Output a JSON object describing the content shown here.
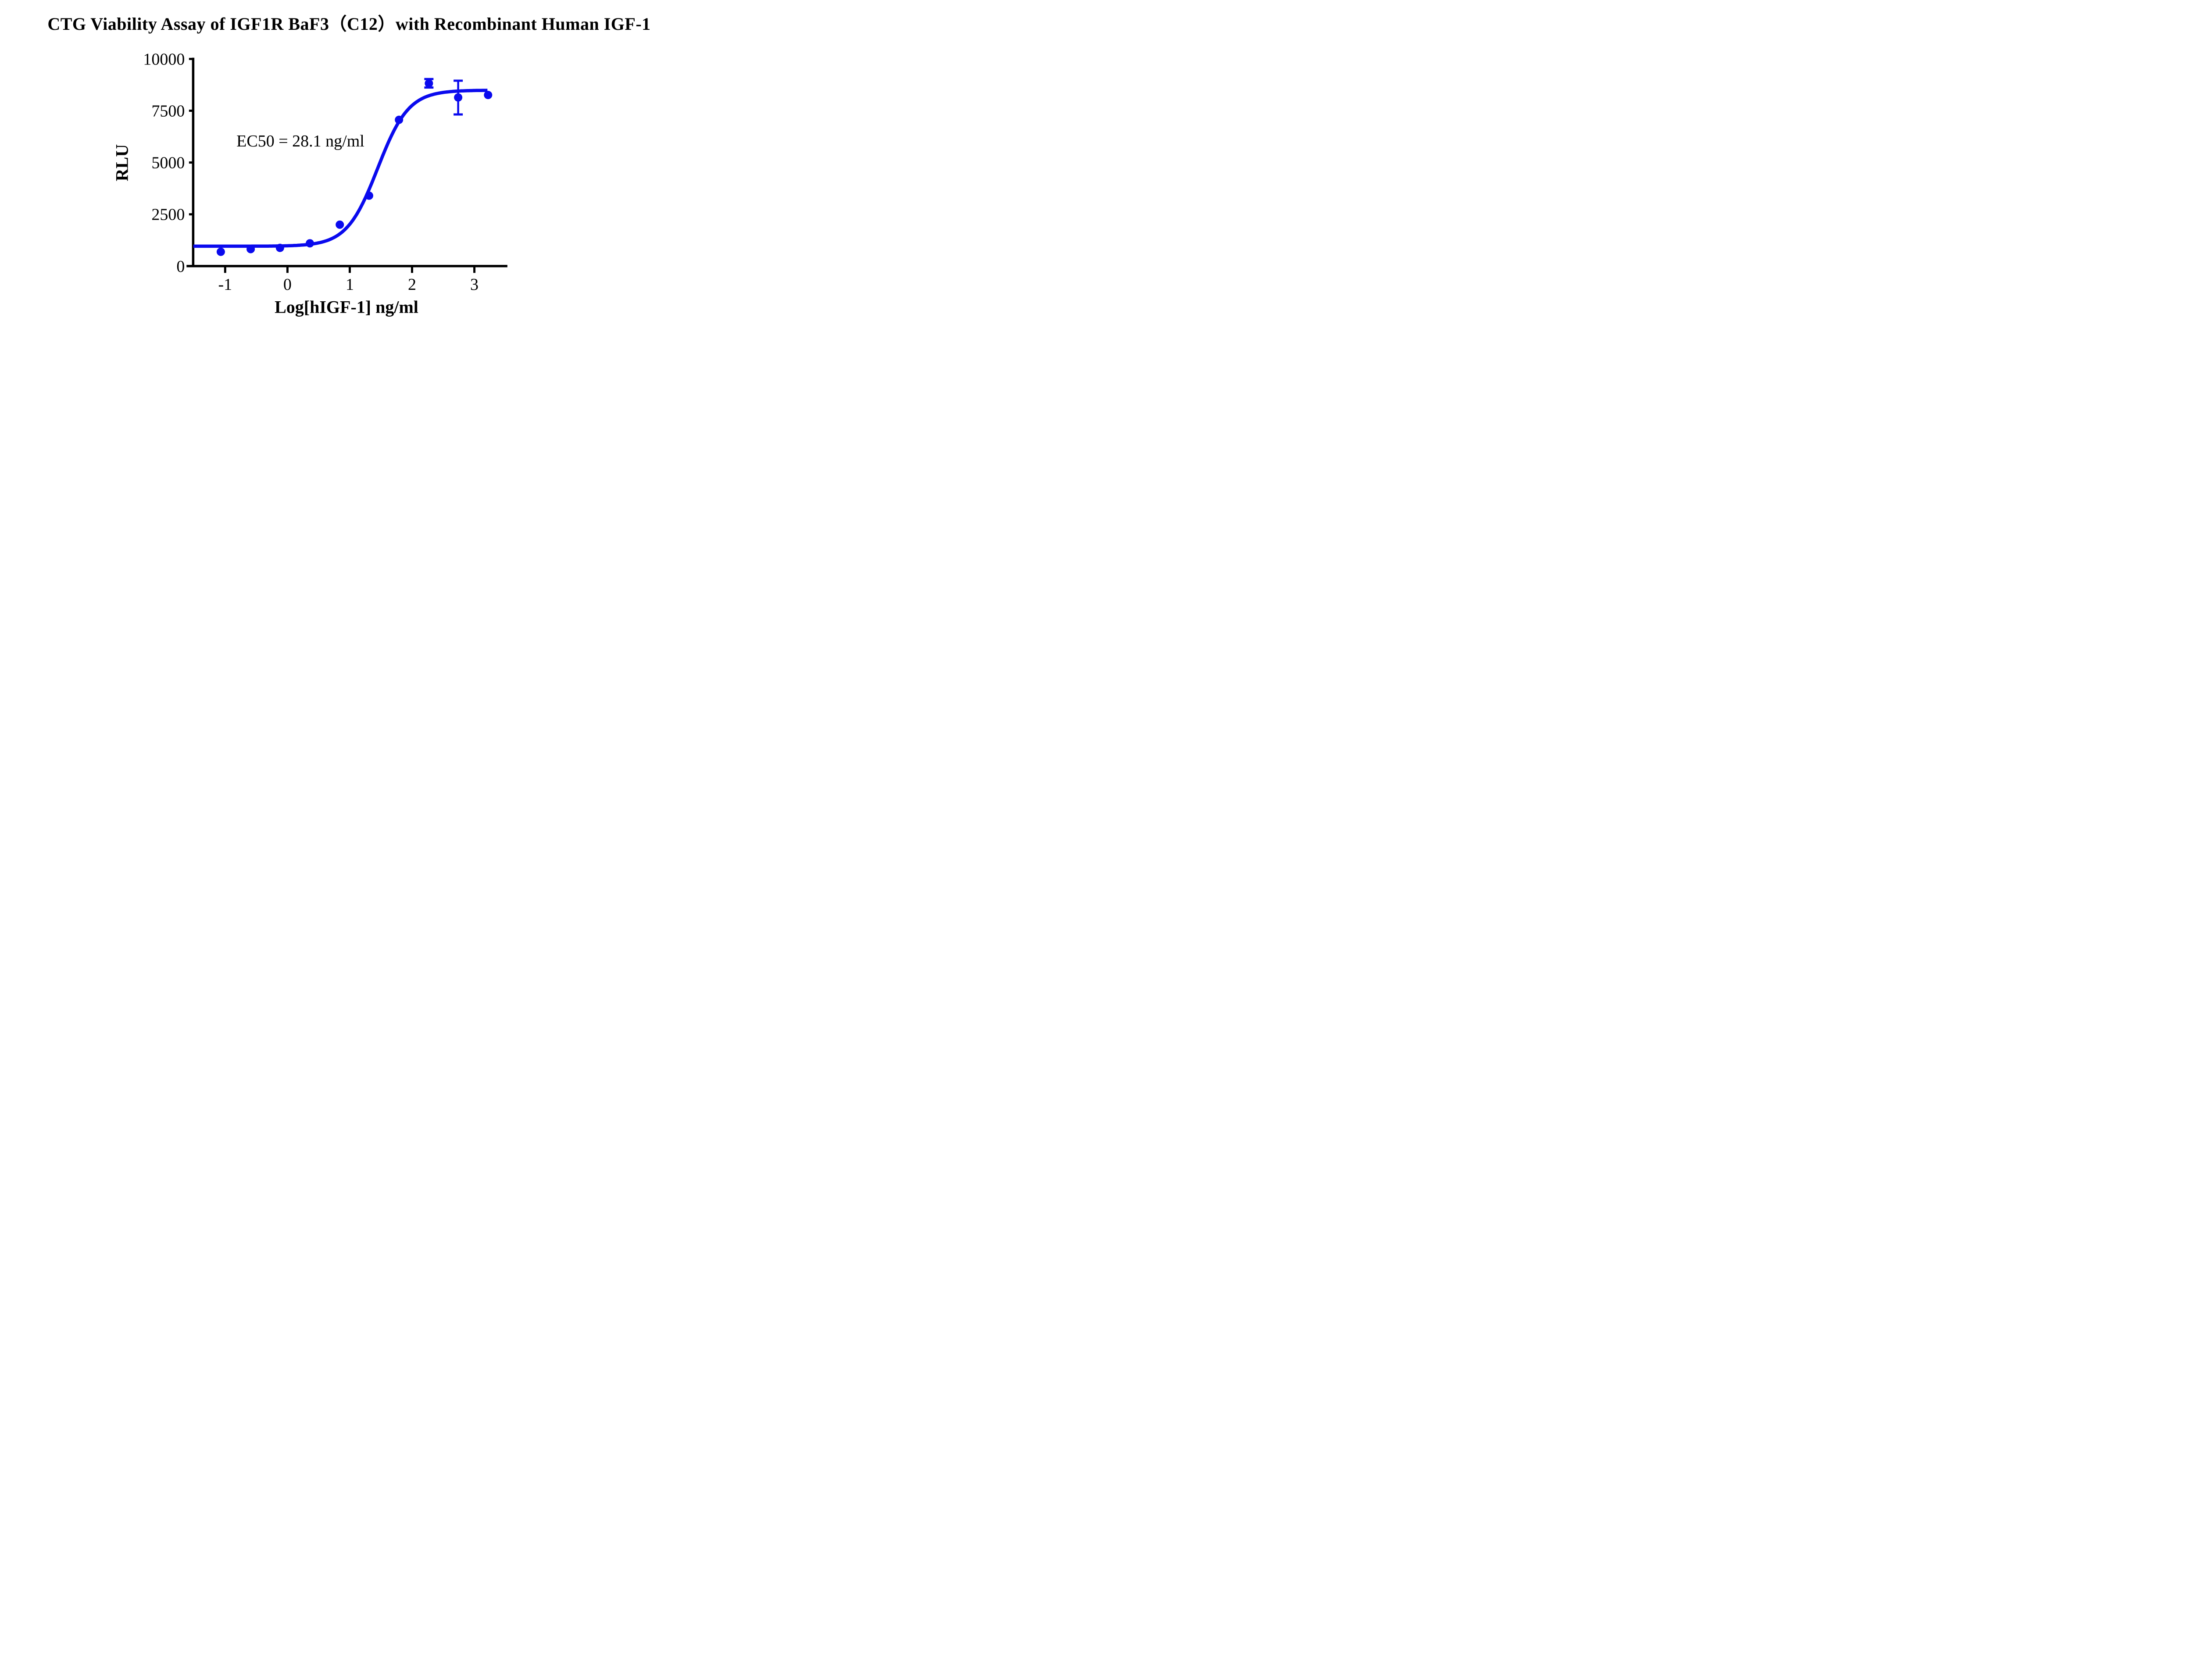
{
  "chart_data": {
    "type": "scatter",
    "title": "CTG Viability Assay of IGF1R BaF3（C12）with Recombinant Human IGF-1",
    "xlabel": "Log[hIGF-1] ng/ml",
    "ylabel": "RLU",
    "annotation": "EC50 = 28.1 ng/ml",
    "x_ticks": [
      -1,
      0,
      1,
      2,
      3
    ],
    "y_ticks": [
      0,
      2500,
      5000,
      7500,
      10000
    ],
    "xlim": [
      -1.62,
      3.53
    ],
    "ylim": [
      0,
      10000
    ],
    "grid": false,
    "legend": "none",
    "series": [
      {
        "name": "Recombinant Human IGF-1",
        "points": [
          {
            "x": -1.07,
            "y": 690
          },
          {
            "x": -0.59,
            "y": 820
          },
          {
            "x": -0.12,
            "y": 880
          },
          {
            "x": 0.36,
            "y": 1100
          },
          {
            "x": 0.84,
            "y": 2000
          },
          {
            "x": 1.31,
            "y": 3400
          },
          {
            "x": 1.79,
            "y": 7060
          },
          {
            "x": 2.27,
            "y": 8820,
            "err_lo": 8620,
            "err_hi": 9030
          },
          {
            "x": 2.74,
            "y": 8140,
            "err_lo": 7320,
            "err_hi": 8950
          },
          {
            "x": 3.22,
            "y": 8260
          }
        ]
      }
    ],
    "fit_curve": {
      "model": "four-parameter logistic",
      "bottom": 960,
      "top": 8490,
      "log_ec50": 1.4487,
      "hill_slope": 1.75,
      "x_start": -1.51,
      "x_end": 3.215,
      "ec50_ng_ml": 28.1
    },
    "colors": {
      "series": "#0a0aee",
      "axis": "#000000",
      "background": "#ffffff"
    }
  }
}
